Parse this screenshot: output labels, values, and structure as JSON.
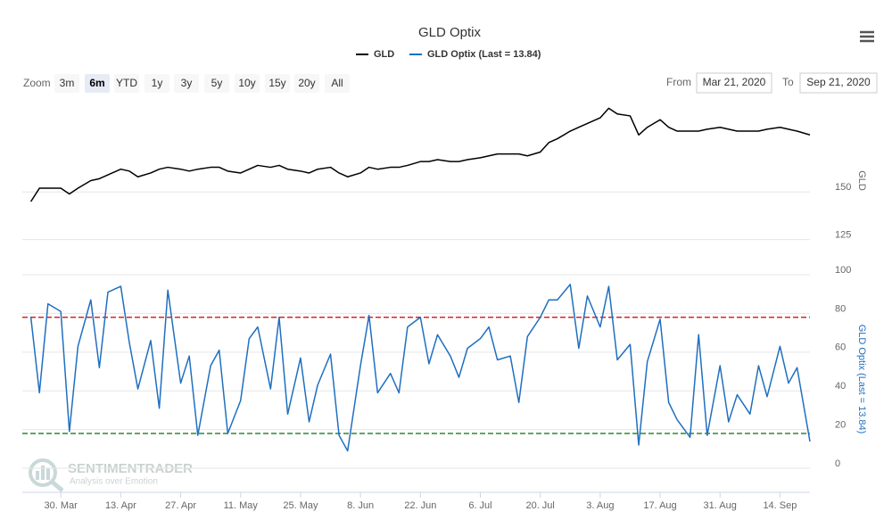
{
  "chart_data": {
    "type": "line",
    "title": "GLD Optix",
    "zoom_label": "Zoom",
    "zoom_buttons": [
      "3m",
      "6m",
      "YTD",
      "1y",
      "3y",
      "5y",
      "10y",
      "15y",
      "20y",
      "All"
    ],
    "zoom_selected_index": 1,
    "from_label": "From",
    "from": "Mar 21, 2020",
    "to_label": "To",
    "to": "Sep 21, 2020",
    "watermark": [
      "SENTIMENTRADER",
      "Analysis over Emotion"
    ],
    "xlim": [
      "2020-03-21",
      "2020-09-21"
    ],
    "xticks": [
      {
        "value": "2020-03-30",
        "label": "30. Mar"
      },
      {
        "value": "2020-04-13",
        "label": "13. Apr"
      },
      {
        "value": "2020-04-27",
        "label": "27. Apr"
      },
      {
        "value": "2020-05-11",
        "label": "11. May"
      },
      {
        "value": "2020-05-25",
        "label": "25. May"
      },
      {
        "value": "2020-06-08",
        "label": "8. Jun"
      },
      {
        "value": "2020-06-22",
        "label": "22. Jun"
      },
      {
        "value": "2020-07-06",
        "label": "6. Jul"
      },
      {
        "value": "2020-07-20",
        "label": "20. Jul"
      },
      {
        "value": "2020-08-03",
        "label": "3. Aug"
      },
      {
        "value": "2020-08-17",
        "label": "17. Aug"
      },
      {
        "value": "2020-08-31",
        "label": "31. Aug"
      },
      {
        "value": "2020-09-14",
        "label": "14. Sep"
      }
    ],
    "grid": true,
    "x": [
      "2020-03-23",
      "2020-03-25",
      "2020-03-27",
      "2020-03-30",
      "2020-04-01",
      "2020-04-03",
      "2020-04-06",
      "2020-04-08",
      "2020-04-10",
      "2020-04-13",
      "2020-04-15",
      "2020-04-17",
      "2020-04-20",
      "2020-04-22",
      "2020-04-24",
      "2020-04-27",
      "2020-04-29",
      "2020-05-01",
      "2020-05-04",
      "2020-05-06",
      "2020-05-08",
      "2020-05-11",
      "2020-05-13",
      "2020-05-15",
      "2020-05-18",
      "2020-05-20",
      "2020-05-22",
      "2020-05-25",
      "2020-05-27",
      "2020-05-29",
      "2020-06-01",
      "2020-06-03",
      "2020-06-05",
      "2020-06-08",
      "2020-06-10",
      "2020-06-12",
      "2020-06-15",
      "2020-06-17",
      "2020-06-19",
      "2020-06-22",
      "2020-06-24",
      "2020-06-26",
      "2020-06-29",
      "2020-07-01",
      "2020-07-03",
      "2020-07-06",
      "2020-07-08",
      "2020-07-10",
      "2020-07-13",
      "2020-07-15",
      "2020-07-17",
      "2020-07-20",
      "2020-07-22",
      "2020-07-24",
      "2020-07-27",
      "2020-07-29",
      "2020-07-31",
      "2020-08-03",
      "2020-08-05",
      "2020-08-07",
      "2020-08-10",
      "2020-08-12",
      "2020-08-14",
      "2020-08-17",
      "2020-08-19",
      "2020-08-21",
      "2020-08-24",
      "2020-08-26",
      "2020-08-28",
      "2020-08-31",
      "2020-09-02",
      "2020-09-04",
      "2020-09-07",
      "2020-09-09",
      "2020-09-11",
      "2020-09-14",
      "2020-09-16",
      "2020-09-18",
      "2020-09-21"
    ],
    "series": [
      {
        "name": "GLD",
        "color": "#000000",
        "y_label": "GLD",
        "ylim": [
          115,
          197
        ],
        "yticks": [
          125,
          150
        ],
        "values": [
          145,
          152,
          152,
          152,
          149,
          152,
          156,
          157,
          159,
          162,
          161,
          158,
          160,
          162,
          163,
          162,
          161,
          162,
          163,
          163,
          161,
          160,
          162,
          164,
          163,
          164,
          162,
          161,
          160,
          162,
          163,
          160,
          158,
          160,
          163,
          162,
          163,
          163,
          164,
          166,
          166,
          167,
          166,
          166,
          167,
          168,
          169,
          170,
          170,
          170,
          169,
          171,
          176,
          178,
          182,
          184,
          186,
          189,
          194,
          191,
          190,
          180,
          184,
          188,
          184,
          182,
          182,
          182,
          183,
          184,
          183,
          182,
          182,
          182,
          183,
          184,
          183,
          182,
          180
        ]
      },
      {
        "name": "GLD Optix (Last = 13.84)",
        "color": "#1f6fc0",
        "y_label": "GLD Optix (Last = 13.84)",
        "ylim": [
          -11.5,
          103.7
        ],
        "yticks": [
          0,
          20,
          40,
          60,
          80,
          100
        ],
        "reference_lines": [
          {
            "value": 78,
            "color": "#d62728"
          },
          {
            "value": 18,
            "color": "#2a8a2a"
          }
        ],
        "values": [
          78,
          39,
          85,
          81,
          19,
          63,
          87,
          52,
          91,
          94,
          65,
          41,
          66,
          31,
          92,
          44,
          58,
          17,
          53,
          61,
          18,
          35,
          67,
          73,
          41,
          78,
          28,
          57,
          24,
          43,
          59,
          17,
          9,
          53,
          79,
          39,
          49,
          39,
          73,
          78,
          54,
          69,
          58,
          47,
          62,
          67,
          73,
          56,
          58,
          34,
          68,
          78,
          87,
          87,
          95,
          62,
          89,
          73,
          94,
          56,
          64,
          12,
          55,
          77,
          34,
          25,
          16,
          69,
          17,
          53,
          24,
          38,
          28,
          53,
          37,
          63,
          44,
          52,
          13.84
        ]
      }
    ]
  }
}
